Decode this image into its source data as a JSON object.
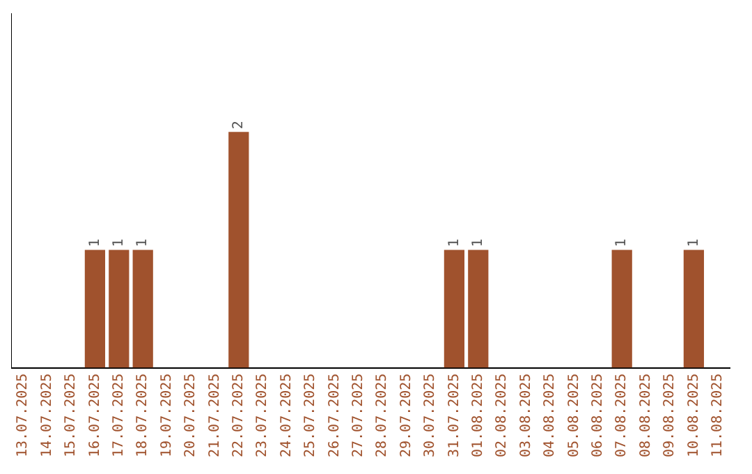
{
  "chart_data": {
    "type": "bar",
    "categories": [
      "13.07.2025",
      "14.07.2025",
      "15.07.2025",
      "16.07.2025",
      "17.07.2025",
      "18.07.2025",
      "19.07.2025",
      "20.07.2025",
      "21.07.2025",
      "22.07.2025",
      "23.07.2025",
      "24.07.2025",
      "25.07.2025",
      "26.07.2025",
      "27.07.2025",
      "28.07.2025",
      "29.07.2025",
      "30.07.2025",
      "31.07.2025",
      "01.08.2025",
      "02.08.2025",
      "03.08.2025",
      "04.08.2025",
      "05.08.2025",
      "06.08.2025",
      "07.08.2025",
      "08.08.2025",
      "09.08.2025",
      "10.08.2025",
      "11.08.2025"
    ],
    "values": [
      0,
      0,
      0,
      1,
      1,
      1,
      0,
      0,
      0,
      2,
      0,
      0,
      0,
      0,
      0,
      0,
      0,
      0,
      1,
      1,
      0,
      0,
      0,
      0,
      0,
      1,
      0,
      0,
      1,
      0
    ],
    "value_labels": [
      null,
      null,
      null,
      "1",
      "1",
      "1",
      null,
      null,
      null,
      "2",
      null,
      null,
      null,
      null,
      null,
      null,
      null,
      null,
      "1",
      "1",
      null,
      null,
      null,
      null,
      null,
      "1",
      null,
      null,
      "1",
      null
    ],
    "color": "#a0522d",
    "tick_labels": "x",
    "grid": false,
    "legend": false
  }
}
